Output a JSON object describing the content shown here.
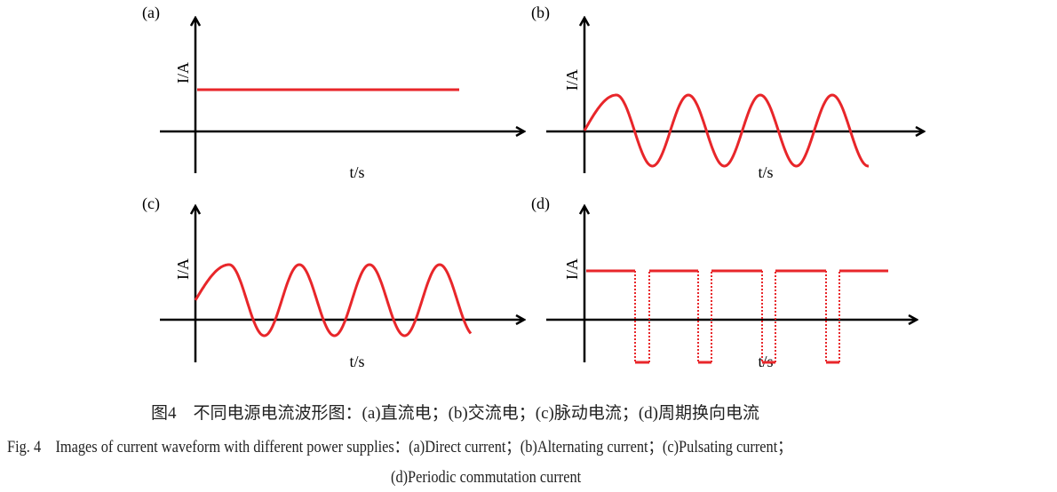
{
  "panels": [
    {
      "label": "(a)",
      "ylabel": "I/A",
      "xlabel": "t/s",
      "waveform": "direct"
    },
    {
      "label": "(b)",
      "ylabel": "I/A",
      "xlabel": "t/s",
      "waveform": "alternating"
    },
    {
      "label": "(c)",
      "ylabel": "I/A",
      "xlabel": "t/s",
      "waveform": "pulsating"
    },
    {
      "label": "(d)",
      "ylabel": "I/A",
      "xlabel": "t/s",
      "waveform": "periodic-commutation"
    }
  ],
  "colors": {
    "waveform": "#e8262a",
    "axes": "#000000"
  },
  "caption": {
    "zh": "图4　不同电源电流波形图：(a)直流电；(b)交流电；(c)脉动电流；(d)周期换向电流",
    "en_line1": "Fig. 4　Images of current waveform with different power supplies：(a)Direct current；(b)Alternating current；(c)Pulsating current；",
    "en_line2": "(d)Periodic commutation current"
  }
}
